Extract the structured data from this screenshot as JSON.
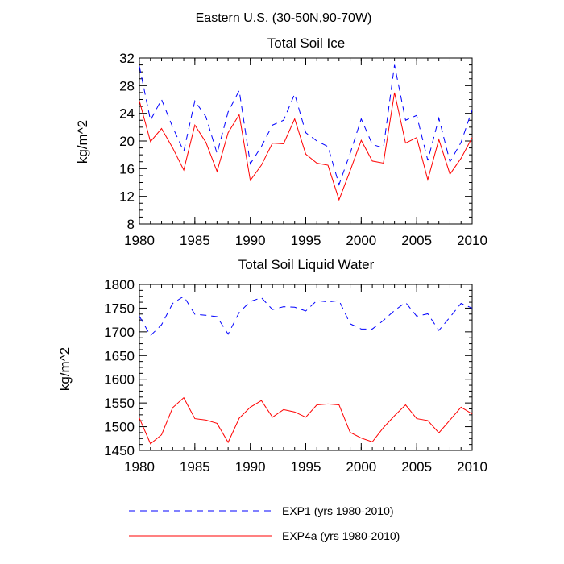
{
  "figure_title": "Eastern U.S. (30-50N,90-70W)",
  "legend": [
    {
      "label": "EXP1 (yrs 1980-2010)",
      "color": "#0000ff",
      "dash": "dashed"
    },
    {
      "label": "EXP4a (yrs 1980-2010)",
      "color": "#ff0000",
      "dash": "solid"
    }
  ],
  "chart_data": [
    {
      "type": "line",
      "title": "Total Soil Ice",
      "xlabel": "",
      "ylabel": "kg/m^2",
      "xlim": [
        1980,
        2010
      ],
      "ylim": [
        8,
        32
      ],
      "xticks": [
        1980,
        1985,
        1990,
        1995,
        2000,
        2005,
        2010
      ],
      "yticks": [
        8,
        12,
        16,
        20,
        24,
        28,
        32
      ],
      "x": [
        1980,
        1981,
        1982,
        1983,
        1984,
        1985,
        1986,
        1987,
        1988,
        1989,
        1990,
        1991,
        1992,
        1993,
        1994,
        1995,
        1996,
        1997,
        1998,
        1999,
        2000,
        2001,
        2002,
        2003,
        2004,
        2005,
        2006,
        2007,
        2008,
        2009,
        2010
      ],
      "series": [
        {
          "name": "EXP1 (yrs 1980-2010)",
          "color": "#0000ff",
          "dash": "dashed",
          "values": [
            30.8,
            23.0,
            26.0,
            22.0,
            18.5,
            25.8,
            23.5,
            18.2,
            24.2,
            27.3,
            16.7,
            19.2,
            22.3,
            23.0,
            26.8,
            21.2,
            20.0,
            19.2,
            13.7,
            18.2,
            23.2,
            19.5,
            19.0,
            31.0,
            23.0,
            23.7,
            17.2,
            23.3,
            17.0,
            19.8,
            24.5
          ]
        },
        {
          "name": "EXP4a (yrs 1980-2010)",
          "color": "#ff0000",
          "dash": "solid",
          "values": [
            25.8,
            19.9,
            21.8,
            19.0,
            15.8,
            22.3,
            19.8,
            15.6,
            21.2,
            23.8,
            14.3,
            16.5,
            19.7,
            19.6,
            23.2,
            18.1,
            16.8,
            16.5,
            11.5,
            15.7,
            20.1,
            17.1,
            16.8,
            27.0,
            19.7,
            20.5,
            14.4,
            20.2,
            15.2,
            17.5,
            20.5
          ]
        }
      ]
    },
    {
      "type": "line",
      "title": "Total Soil Liquid Water",
      "xlabel": "",
      "ylabel": "kg/m^2",
      "xlim": [
        1980,
        2010
      ],
      "ylim": [
        1450,
        1800
      ],
      "xticks": [
        1980,
        1985,
        1990,
        1995,
        2000,
        2005,
        2010
      ],
      "yticks": [
        1450,
        1500,
        1550,
        1600,
        1650,
        1700,
        1750,
        1800
      ],
      "x": [
        1980,
        1981,
        1982,
        1983,
        1984,
        1985,
        1986,
        1987,
        1988,
        1989,
        1990,
        1991,
        1992,
        1993,
        1994,
        1995,
        1996,
        1997,
        1998,
        1999,
        2000,
        2001,
        2002,
        2003,
        2004,
        2005,
        2006,
        2007,
        2008,
        2009,
        2010
      ],
      "series": [
        {
          "name": "EXP1 (yrs 1980-2010)",
          "color": "#0000ff",
          "dash": "dashed",
          "values": [
            1733,
            1692,
            1715,
            1760,
            1775,
            1737,
            1735,
            1732,
            1695,
            1741,
            1764,
            1772,
            1747,
            1753,
            1752,
            1744,
            1766,
            1763,
            1766,
            1717,
            1706,
            1706,
            1724,
            1745,
            1762,
            1733,
            1738,
            1703,
            1731,
            1760,
            1750
          ]
        },
        {
          "name": "EXP4a (yrs 1980-2010)",
          "color": "#ff0000",
          "dash": "solid",
          "values": [
            1518,
            1464,
            1483,
            1540,
            1561,
            1517,
            1514,
            1507,
            1467,
            1518,
            1541,
            1555,
            1520,
            1536,
            1531,
            1520,
            1546,
            1548,
            1546,
            1488,
            1476,
            1468,
            1498,
            1523,
            1546,
            1517,
            1513,
            1487,
            1514,
            1541,
            1527
          ]
        }
      ]
    }
  ]
}
